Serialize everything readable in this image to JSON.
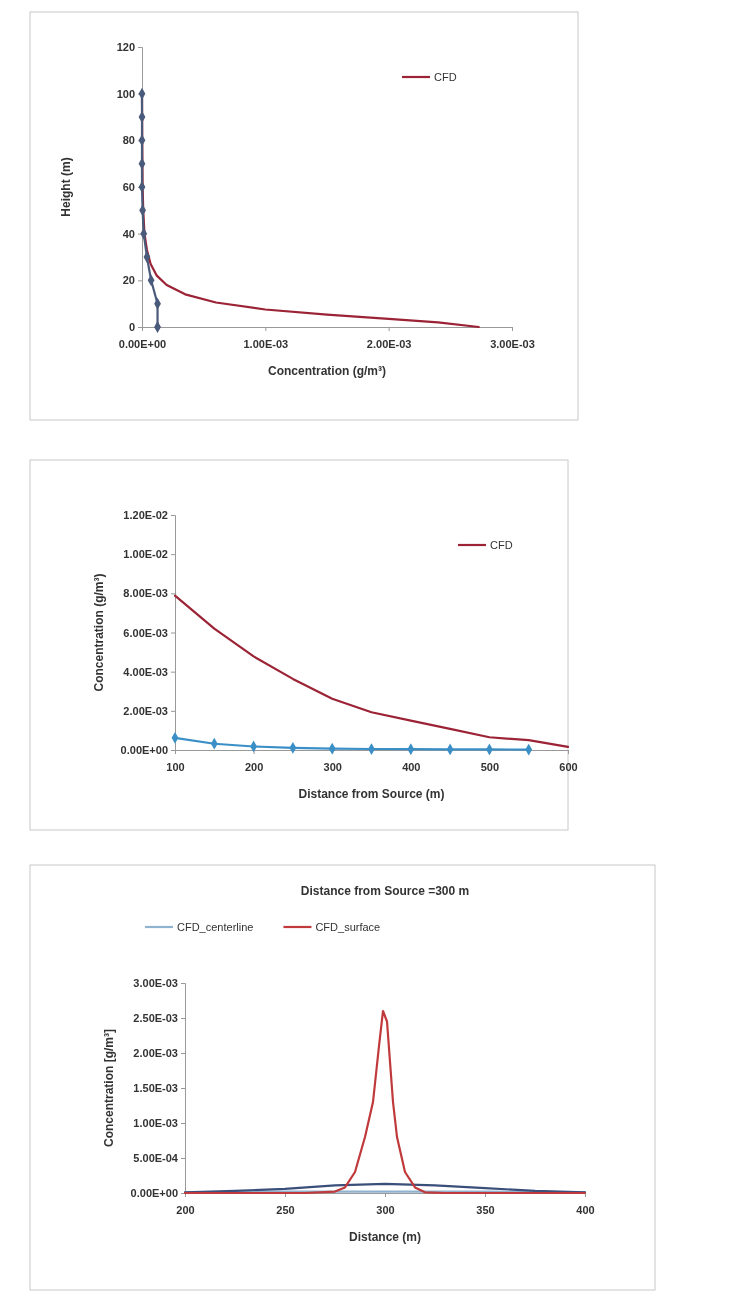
{
  "chart_data": [
    {
      "type": "line",
      "xlabel": "Concentration (g/m³)",
      "ylabel": "Height (m)",
      "xlim": [
        0,
        0.003
      ],
      "xticks": [
        {
          "value": 0,
          "label": "0.00E+00"
        },
        {
          "value": 0.001,
          "label": "1.00E-03"
        },
        {
          "value": 0.002,
          "label": "2.00E-03"
        },
        {
          "value": 0.003,
          "label": "3.00E-03"
        }
      ],
      "ylim": [
        0,
        120
      ],
      "yticks": [
        0,
        20,
        40,
        60,
        80,
        100,
        120
      ],
      "legend": "top right",
      "grid": false,
      "series": [
        {
          "color": "#4a5a7a",
          "marker": "diamond",
          "x": [
            0.000126,
            0.000126,
            7.4e-05,
            4e-05,
            1.4e-05,
            5e-06,
            0,
            0,
            0,
            0,
            0
          ],
          "values": [
            0,
            10,
            20,
            30,
            40,
            50,
            60,
            70,
            80,
            90,
            100
          ]
        },
        {
          "name": "CFD",
          "color": "#9b2335",
          "marker": "none",
          "x": [
            0.00273,
            0.0024,
            0.002,
            0.0015,
            0.001,
            0.0006,
            0.00035,
            0.0002,
            0.00012,
            7e-05,
            4e-05,
            2e-05,
            1e-05,
            5e-06,
            2e-06,
            0
          ],
          "values": [
            0,
            2,
            3.5,
            5.3,
            7.5,
            10.5,
            14,
            18,
            22,
            27,
            33,
            40,
            50,
            60,
            80,
            100
          ]
        }
      ]
    },
    {
      "type": "line",
      "xlabel": "Distance from Source (m)",
      "ylabel": "Concentration (g/m³)",
      "xlim": [
        100,
        600
      ],
      "xticks": [
        100,
        200,
        300,
        400,
        500,
        600
      ],
      "ylim": [
        0,
        0.012
      ],
      "yticks": [
        {
          "value": 0,
          "label": "0.00E+00"
        },
        {
          "value": 0.002,
          "label": "2.00E-03"
        },
        {
          "value": 0.004,
          "label": "4.00E-03"
        },
        {
          "value": 0.006,
          "label": "6.00E-03"
        },
        {
          "value": 0.008,
          "label": "8.00E-03"
        },
        {
          "value": 0.01,
          "label": "1.00E-02"
        },
        {
          "value": 0.012,
          "label": "1.20E-02"
        }
      ],
      "legend": "top right",
      "grid": false,
      "series": [
        {
          "color": "#3a8fc7",
          "marker": "diamond",
          "x": [
            100,
            150,
            200,
            250,
            300,
            350,
            400,
            450,
            500,
            550
          ],
          "values": [
            0.00062,
            0.00032,
            0.00018,
            0.00011,
            7e-05,
            5e-05,
            4e-05,
            3e-05,
            3e-05,
            2e-05
          ]
        },
        {
          "name": "CFD",
          "color": "#9b2335",
          "marker": "none",
          "x": [
            100,
            150,
            200,
            250,
            300,
            350,
            400,
            450,
            500,
            550,
            600
          ],
          "values": [
            0.00788,
            0.0062,
            0.00478,
            0.00363,
            0.00262,
            0.00193,
            0.0015,
            0.00108,
            0.00065,
            0.0005,
            0.00016
          ]
        }
      ]
    },
    {
      "type": "line",
      "title": "Distance from Source =300 m",
      "xlabel": "Distance (m)",
      "ylabel": "Concentration [g/m³]",
      "xlim": [
        200,
        400
      ],
      "xticks": [
        200,
        250,
        300,
        350,
        400
      ],
      "ylim": [
        0,
        0.003
      ],
      "yticks": [
        {
          "value": 0,
          "label": "0.00E+00"
        },
        {
          "value": 0.0005,
          "label": "5.00E-04"
        },
        {
          "value": 0.001,
          "label": "1.00E-03"
        },
        {
          "value": 0.0015,
          "label": "1.50E-03"
        },
        {
          "value": 0.002,
          "label": "2.00E-03"
        },
        {
          "value": 0.0025,
          "label": "2.50E-03"
        },
        {
          "value": 0.003,
          "label": "3.00E-03"
        }
      ],
      "legend": "top",
      "grid": false,
      "series": [
        {
          "name": "CFD_centerline",
          "color": "#8fb3cf",
          "marker": "none",
          "x": [
            200,
            250,
            300,
            350,
            400
          ],
          "values": [
            1e-05,
            2e-05,
            2e-05,
            2e-05,
            1e-05
          ]
        },
        {
          "color": "#3a4f7a",
          "marker": "none",
          "x": [
            200,
            225,
            250,
            275,
            300,
            325,
            350,
            375,
            400
          ],
          "values": [
            1e-05,
            3e-05,
            6e-05,
            0.00011,
            0.00013,
            0.00011,
            7e-05,
            3e-05,
            1e-05
          ]
        },
        {
          "name": "CFD_surface",
          "color": "#c0393b",
          "marker": "none",
          "x": [
            200,
            260,
            275,
            280,
            285,
            290,
            294,
            297,
            299,
            301,
            304,
            306,
            310,
            315,
            320,
            330,
            400
          ],
          "values": [
            0,
            0,
            2e-05,
            8e-05,
            0.0003,
            0.0008,
            0.0013,
            0.0021,
            0.0026,
            0.00245,
            0.0013,
            0.0008,
            0.0003,
            8e-05,
            1e-05,
            0,
            0
          ]
        }
      ]
    }
  ]
}
